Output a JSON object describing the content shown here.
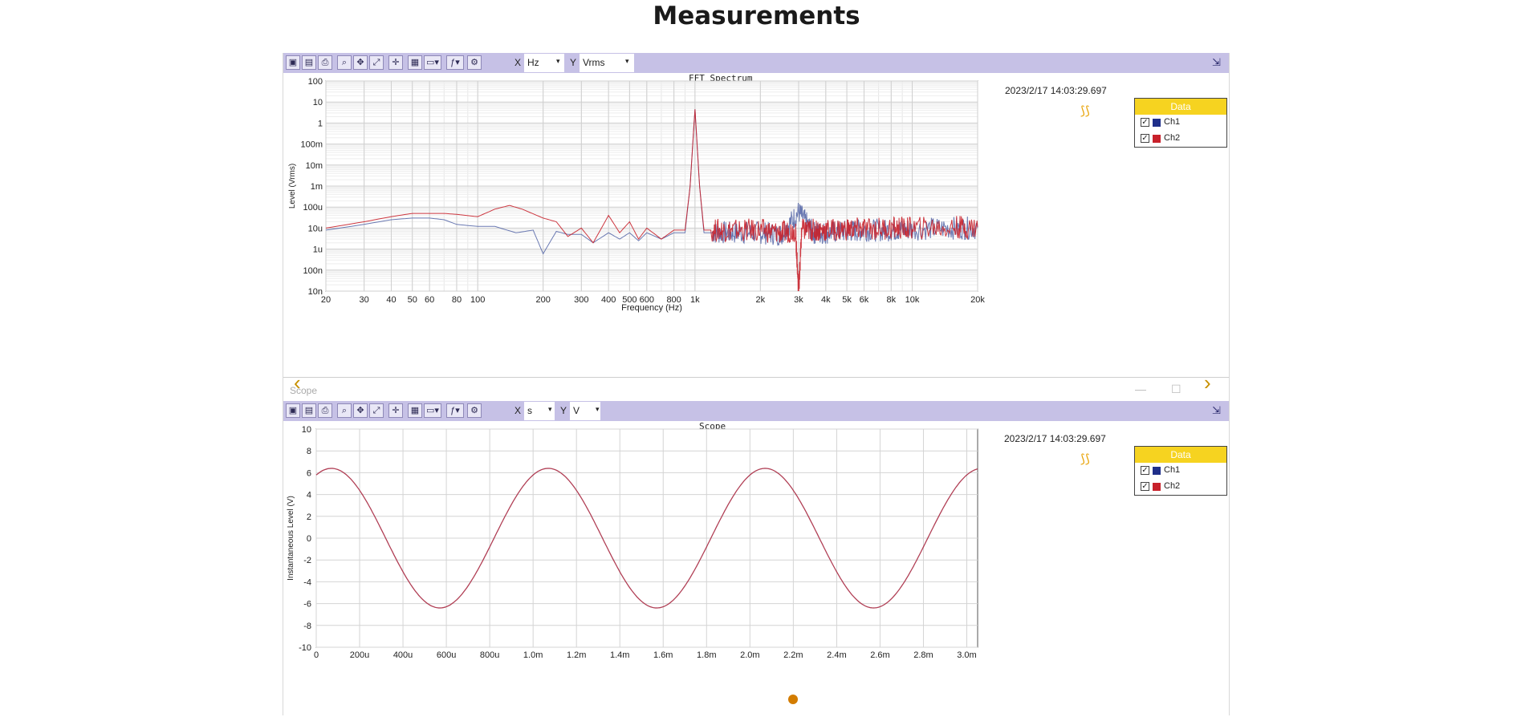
{
  "page": {
    "title": "Measurements"
  },
  "fft": {
    "toolbar": {
      "x_axis": "X",
      "x_unit": "Hz",
      "y_axis": "Y",
      "y_unit": "Vrms"
    },
    "title": "FFT Spectrum",
    "timestamp": "2023/2/17 14:03:29.697",
    "xlabel": "Frequency (Hz)",
    "ylabel": "Level (Vrms)",
    "legend": {
      "header": "Data",
      "items": [
        {
          "name": "Ch1",
          "color": "#1f2f8a"
        },
        {
          "name": "Ch2",
          "color": "#c8212b"
        }
      ]
    }
  },
  "scope_window": {
    "label": "Scope"
  },
  "scope": {
    "toolbar": {
      "x_axis": "X",
      "x_unit": "s",
      "y_axis": "Y",
      "y_unit": "V"
    },
    "title": "Scope",
    "timestamp": "2023/2/17 14:03:29.697",
    "ylabel": "Instantaneous Level (V)",
    "legend": {
      "header": "Data",
      "items": [
        {
          "name": "Ch1",
          "color": "#1f2f8a"
        },
        {
          "name": "Ch2",
          "color": "#c8212b"
        }
      ]
    }
  },
  "colors": {
    "ch1": "#5a6aaa",
    "ch2": "#c8212b",
    "toolbar": "#c6c1e6",
    "legend_header": "#f6d320"
  },
  "chart_data": [
    {
      "type": "line",
      "title": "FFT Spectrum",
      "xlabel": "Frequency (Hz)",
      "ylabel": "Level (Vrms)",
      "xscale": "log",
      "yscale": "log",
      "xlim": [
        20,
        20000
      ],
      "ylim": [
        1e-08,
        100
      ],
      "x_ticks": [
        20,
        30,
        40,
        50,
        60,
        80,
        100,
        200,
        300,
        400,
        500,
        600,
        800,
        1000,
        2000,
        3000,
        4000,
        5000,
        6000,
        8000,
        10000,
        20000
      ],
      "x_tick_labels": [
        "20",
        "30",
        "40",
        "50",
        "60",
        "80",
        "100",
        "200",
        "300",
        "400",
        "500",
        "600",
        "800",
        "1k",
        "2k",
        "3k",
        "4k",
        "5k",
        "6k",
        "8k",
        "10k",
        "20k"
      ],
      "y_ticks": [
        1e-08,
        1e-07,
        1e-06,
        1e-05,
        0.0001,
        0.001,
        0.01,
        0.1,
        1,
        10,
        100
      ],
      "y_tick_labels": [
        "10n",
        "100n",
        "1u",
        "10u",
        "100u",
        "1m",
        "10m",
        "100m",
        "1",
        "10",
        "100"
      ],
      "grid": true,
      "legend_position": "right",
      "series": [
        {
          "name": "Ch1",
          "x": [
            20,
            30,
            40,
            50,
            60,
            70,
            80,
            100,
            120,
            150,
            180,
            200,
            230,
            260,
            300,
            340,
            400,
            450,
            500,
            550,
            600,
            700,
            800,
            900,
            950,
            1000,
            1050,
            1100,
            1200,
            1500,
            2000,
            2500,
            3000,
            3500,
            4000,
            5000,
            6000,
            8000,
            10000,
            15000,
            20000
          ],
          "y": [
            8e-06,
            1.5e-05,
            2.5e-05,
            3e-05,
            3e-05,
            2.5e-05,
            1.5e-05,
            1.2e-05,
            1.2e-05,
            6e-06,
            8e-06,
            6e-07,
            7e-06,
            5e-06,
            5e-06,
            2e-06,
            6e-06,
            3e-06,
            6e-06,
            2.5e-06,
            6e-06,
            3e-06,
            6e-06,
            6e-06,
            0.001,
            4.5,
            0.001,
            6e-06,
            6e-06,
            6e-06,
            6e-06,
            5e-06,
            6e-05,
            6e-06,
            6e-06,
            7e-06,
            8e-06,
            8e-06,
            9e-06,
            1e-05,
            1e-05
          ]
        },
        {
          "name": "Ch2",
          "x": [
            20,
            30,
            40,
            50,
            60,
            70,
            80,
            100,
            120,
            140,
            160,
            200,
            230,
            260,
            300,
            340,
            400,
            450,
            500,
            550,
            600,
            700,
            800,
            900,
            950,
            1000,
            1050,
            1100,
            1200,
            1500,
            2000,
            2500,
            2900,
            3000,
            3100,
            3500,
            4000,
            5000,
            6000,
            8000,
            10000,
            15000,
            20000
          ],
          "y": [
            1e-05,
            2e-05,
            3.5e-05,
            5e-05,
            5e-05,
            5e-05,
            4.5e-05,
            3.5e-05,
            8e-05,
            0.00012,
            8e-05,
            3e-05,
            2e-05,
            4e-06,
            1e-05,
            2e-06,
            4e-05,
            6e-06,
            2e-05,
            3e-06,
            1e-05,
            3e-06,
            8e-06,
            8e-06,
            0.001,
            4.5,
            0.001,
            8e-06,
            8e-06,
            8e-06,
            8e-06,
            6e-06,
            8e-06,
            1e-08,
            8e-06,
            8e-06,
            8e-06,
            9e-06,
            9e-06,
            1e-05,
            1e-05,
            1.1e-05,
            1.1e-05
          ]
        }
      ]
    },
    {
      "type": "line",
      "title": "Scope",
      "xlabel": "",
      "ylabel": "Instantaneous Level (V)",
      "xlim": [
        0,
        0.00305
      ],
      "ylim": [
        -10,
        10
      ],
      "x_ticks": [
        0,
        0.0002,
        0.0004,
        0.0006,
        0.0008,
        0.001,
        0.0012,
        0.0014,
        0.0016,
        0.0018,
        0.002,
        0.0022,
        0.0024,
        0.0026,
        0.0028,
        0.003
      ],
      "x_tick_labels": [
        "0",
        "200u",
        "400u",
        "600u",
        "800u",
        "1.0m",
        "1.2m",
        "1.4m",
        "1.6m",
        "1.8m",
        "2.0m",
        "2.2m",
        "2.4m",
        "2.6m",
        "2.8m",
        "3.0m"
      ],
      "y_ticks": [
        -10,
        -8,
        -6,
        -4,
        -2,
        0,
        2,
        4,
        6,
        8,
        10
      ],
      "y_tick_labels": [
        "-10",
        "-8",
        "-6",
        "-4",
        "-2",
        "0",
        "2",
        "4",
        "6",
        "8",
        "10"
      ],
      "grid": true,
      "legend_position": "right",
      "signal": {
        "amplitude": 6.4,
        "frequency": 1000,
        "peak_time": 7e-05
      },
      "series": [
        {
          "name": "Ch1"
        },
        {
          "name": "Ch2"
        }
      ]
    }
  ]
}
